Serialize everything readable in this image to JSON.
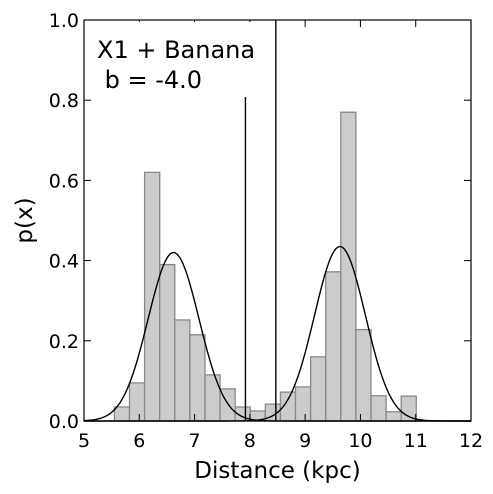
{
  "chart_data": {
    "type": "histogram",
    "xlabel": "Distance (kpc)",
    "ylabel": "p(x)",
    "xlim": [
      5,
      12
    ],
    "ylim": [
      0,
      1.0
    ],
    "xticks": [
      "5",
      "6",
      "7",
      "8",
      "9",
      "10",
      "11",
      "12"
    ],
    "yticks": [
      "0.0",
      "0.2",
      "0.4",
      "0.6",
      "0.8",
      "1.0"
    ],
    "annotation": [
      "X1 + Banana",
      " b = -4.0"
    ],
    "bin_width": 0.273,
    "bins": [
      {
        "left": 5.55,
        "height": 0.035
      },
      {
        "left": 5.823,
        "height": 0.095
      },
      {
        "left": 6.096,
        "height": 0.62
      },
      {
        "left": 6.369,
        "height": 0.39
      },
      {
        "left": 6.642,
        "height": 0.252
      },
      {
        "left": 6.915,
        "height": 0.215
      },
      {
        "left": 7.188,
        "height": 0.115
      },
      {
        "left": 7.461,
        "height": 0.08
      },
      {
        "left": 7.734,
        "height": 0.035
      },
      {
        "left": 8.007,
        "height": 0.025
      },
      {
        "left": 8.28,
        "height": 0.042
      },
      {
        "left": 8.553,
        "height": 0.072
      },
      {
        "left": 8.826,
        "height": 0.085
      },
      {
        "left": 9.099,
        "height": 0.16
      },
      {
        "left": 9.372,
        "height": 0.372
      },
      {
        "left": 9.645,
        "height": 0.77
      },
      {
        "left": 9.918,
        "height": 0.228
      },
      {
        "left": 10.191,
        "height": 0.063
      },
      {
        "left": 10.464,
        "height": 0.023
      },
      {
        "left": 10.737,
        "height": 0.062
      }
    ],
    "gaussians": [
      {
        "mu": 6.62,
        "sigma": 0.46,
        "amplitude": 0.42
      },
      {
        "mu": 9.63,
        "sigma": 0.46,
        "amplitude": 0.435
      }
    ],
    "vertical_lines": [
      7.92,
      8.47
    ],
    "colors": {
      "bar_fill": "#cccccc",
      "bar_edge": "#888888",
      "curve": "#000000"
    }
  }
}
